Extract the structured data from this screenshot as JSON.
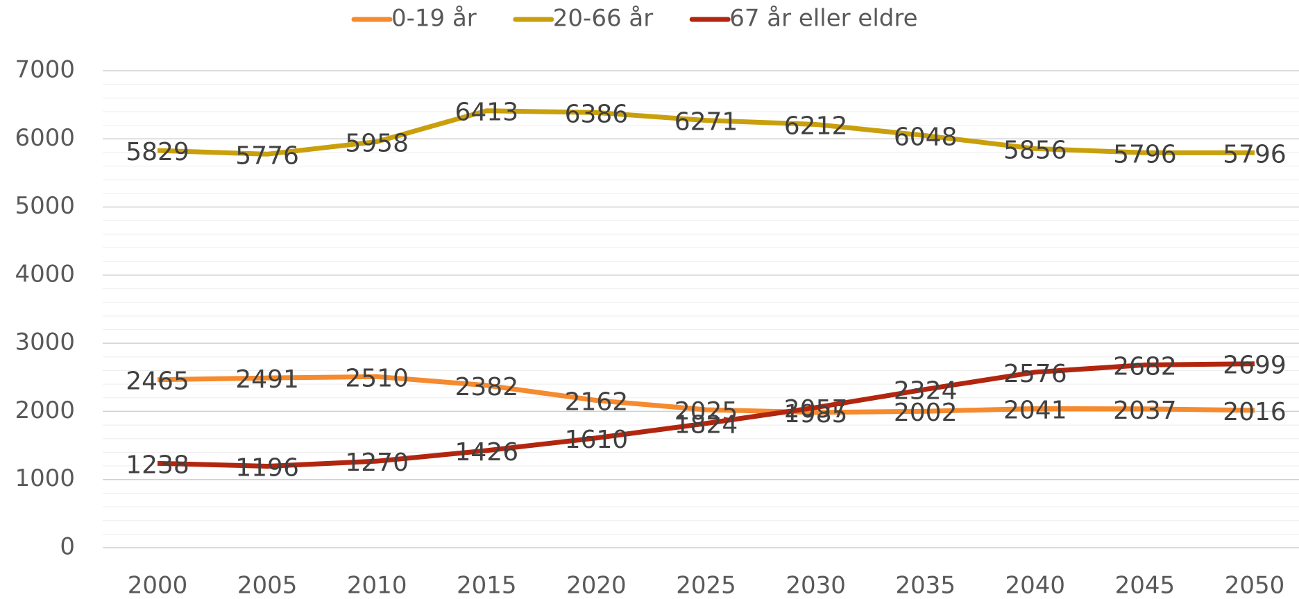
{
  "chart_data": {
    "type": "line",
    "categories": [
      "2000",
      "2005",
      "2010",
      "2015",
      "2020",
      "2025",
      "2030",
      "2035",
      "2040",
      "2045",
      "2050"
    ],
    "series": [
      {
        "name": "0-19 år",
        "color": "#f58a2e",
        "values": [
          2465,
          2491,
          2510,
          2382,
          2162,
          2025,
          1985,
          2002,
          2041,
          2037,
          2016
        ]
      },
      {
        "name": "20-66 år",
        "color": "#c9a00c",
        "values": [
          5829,
          5776,
          5958,
          6413,
          6386,
          6271,
          6212,
          6048,
          5856,
          5796,
          5796
        ]
      },
      {
        "name": "67 år eller eldre",
        "color": "#b2260f",
        "values": [
          1238,
          1196,
          1270,
          1426,
          1610,
          1824,
          2057,
          2324,
          2576,
          2682,
          2699
        ]
      }
    ],
    "ylim": [
      0,
      7000
    ],
    "yticks": [
      0,
      1000,
      2000,
      3000,
      4000,
      5000,
      6000,
      7000
    ],
    "grid": true,
    "minor_grid": true,
    "legend": "top"
  }
}
